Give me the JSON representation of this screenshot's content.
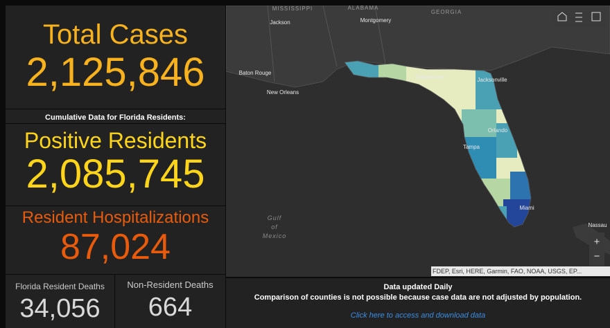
{
  "total_cases": {
    "label": "Total Cases",
    "value": "2,125,846"
  },
  "note": "Cumulative Data for Florida Residents:",
  "positive_residents": {
    "label": "Positive Residents",
    "value": "2,085,745"
  },
  "hospitalizations": {
    "label": "Resident Hospitalizations",
    "value": "87,024"
  },
  "resident_deaths": {
    "label": "Florida Resident Deaths",
    "value": "34,056"
  },
  "non_resident_deaths": {
    "label": "Non-Resident Deaths",
    "value": "664"
  },
  "info": {
    "line1": "Data updated Daily",
    "line2": "Comparison of counties is not possible because case data are not adjusted by population.",
    "link": "Click here to access and download data"
  },
  "map": {
    "states": [
      "MISSISSIPPI",
      "ALABAMA",
      "GEORGIA"
    ],
    "cities": [
      "Jackson",
      "Montgomery",
      "Baton Rouge",
      "New Orleans",
      "Tallahassee",
      "Jacksonville",
      "Orlando",
      "Tampa",
      "Miami",
      "Nassau"
    ],
    "water": [
      "Gulf",
      "of",
      "Mexico"
    ],
    "attribution": "FDEP, Esri, HERE, Garmin, FAO, NOAA, USGS, EP...",
    "zoom": [
      "+",
      "−"
    ]
  }
}
